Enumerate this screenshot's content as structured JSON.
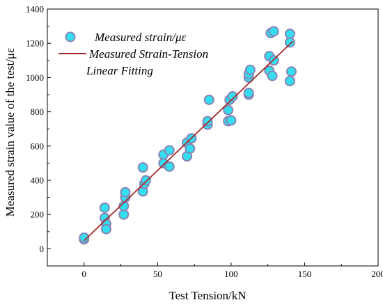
{
  "chart_data": {
    "type": "scatter",
    "xlabel": "Test Tension/kN",
    "ylabel": "Measured strain value of the test/με",
    "xlim": [
      -25,
      200
    ],
    "ylim": [
      -100,
      1400
    ],
    "xticks": [
      0,
      50,
      100,
      150,
      200
    ],
    "yticks": [
      0,
      200,
      400,
      600,
      800,
      1000,
      1200,
      1400
    ],
    "legend_position": "top-left",
    "series": [
      {
        "name": "Measured strain/με",
        "kind": "scatter",
        "marker_color": "#33dfee",
        "edge_color": "#8a82b4",
        "points": [
          [
            0,
            55
          ],
          [
            0,
            65
          ],
          [
            14,
            240
          ],
          [
            14,
            180
          ],
          [
            15,
            145
          ],
          [
            15,
            115
          ],
          [
            27,
            200
          ],
          [
            27,
            250
          ],
          [
            28,
            300
          ],
          [
            28,
            330
          ],
          [
            40,
            475
          ],
          [
            40,
            335
          ],
          [
            41,
            380
          ],
          [
            42,
            400
          ],
          [
            54,
            500
          ],
          [
            54,
            550
          ],
          [
            58,
            480
          ],
          [
            58,
            575
          ],
          [
            70,
            540
          ],
          [
            70,
            620
          ],
          [
            72,
            585
          ],
          [
            73,
            645
          ],
          [
            84,
            725
          ],
          [
            84,
            745
          ],
          [
            85,
            870
          ],
          [
            98,
            745
          ],
          [
            98,
            810
          ],
          [
            99,
            870
          ],
          [
            100,
            750
          ],
          [
            101,
            890
          ],
          [
            112,
            900
          ],
          [
            112,
            910
          ],
          [
            112,
            1000
          ],
          [
            112,
            1020
          ],
          [
            113,
            1045
          ],
          [
            126,
            1040
          ],
          [
            126,
            1125
          ],
          [
            127,
            1260
          ],
          [
            128,
            1010
          ],
          [
            129,
            1270
          ],
          [
            129,
            1100
          ],
          [
            140,
            980
          ],
          [
            140,
            1255
          ],
          [
            140,
            1205
          ],
          [
            141,
            1035
          ]
        ]
      },
      {
        "name": "Measured Strain-Tension Linear Fitting",
        "kind": "line",
        "color": "#a52a2a",
        "x": [
          0,
          142
        ],
        "y": [
          48,
          1212
        ]
      }
    ]
  },
  "legend": {
    "scatter_label": "Measured strain/με",
    "fit_label_line1": "Measured Strain-Tension",
    "fit_label_line2": "Linear Fitting"
  }
}
